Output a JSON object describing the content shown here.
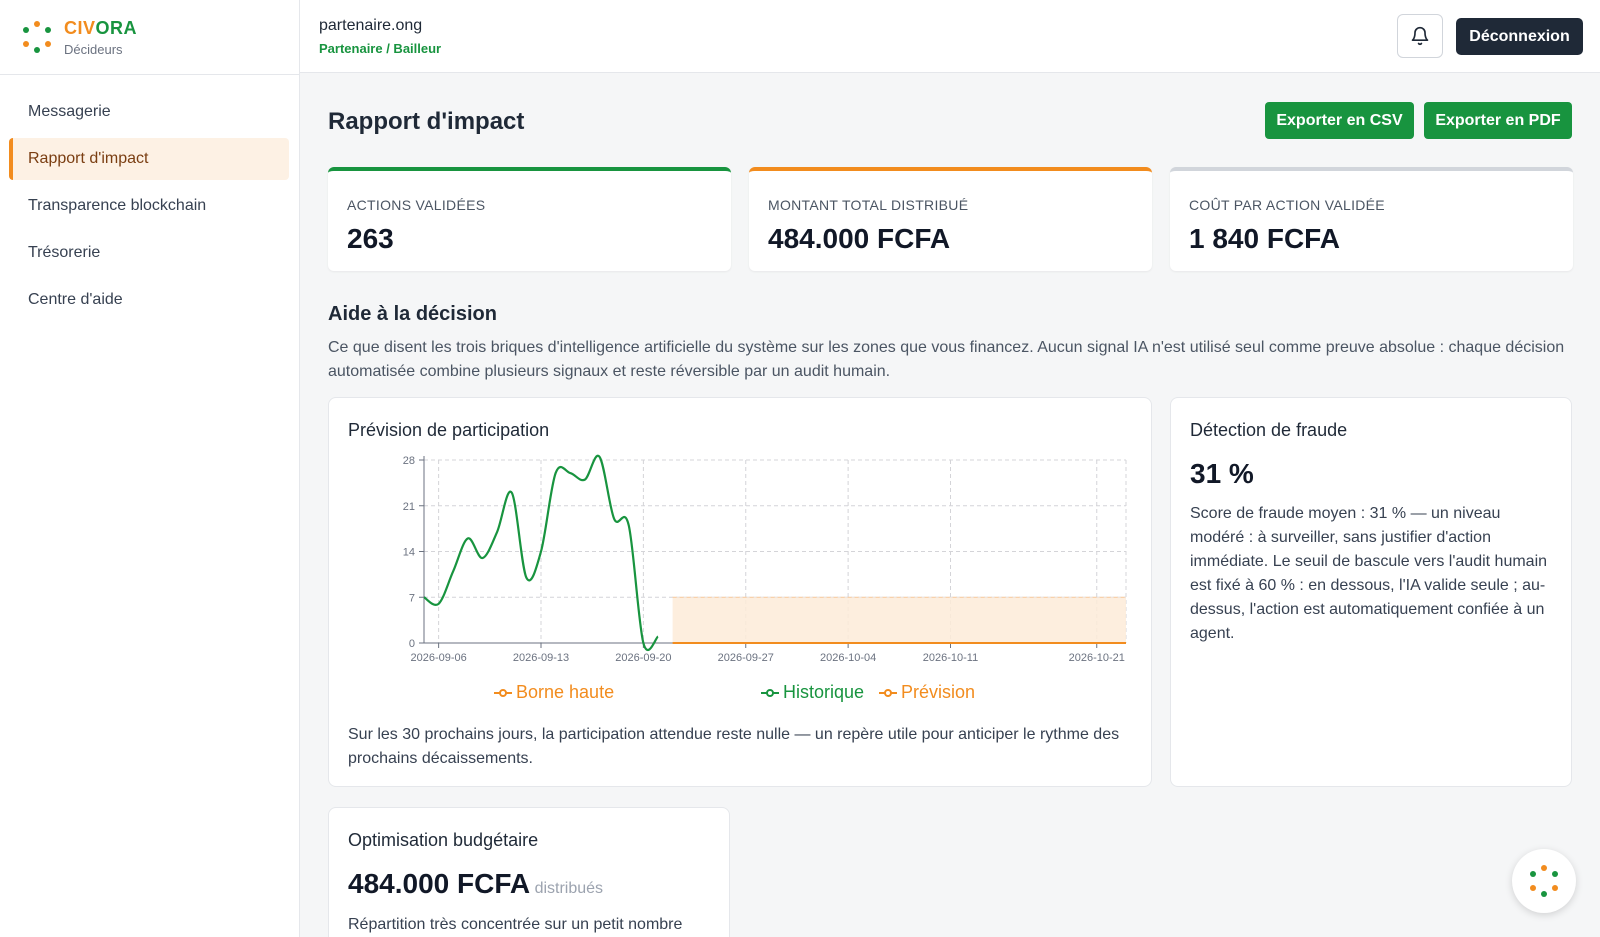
{
  "brand": {
    "name_part1": "CIV",
    "name_part2": "ORA",
    "subtitle": "Décideurs"
  },
  "sidebar": {
    "items": [
      {
        "label": "Messagerie",
        "active": false
      },
      {
        "label": "Rapport d'impact",
        "active": true
      },
      {
        "label": "Transparence blockchain",
        "active": false
      },
      {
        "label": "Trésorerie",
        "active": false
      },
      {
        "label": "Centre d'aide",
        "active": false
      }
    ]
  },
  "topbar": {
    "org": "partenaire.ong",
    "role": "Partenaire / Bailleur",
    "logout_label": "Déconnexion",
    "bell_icon": "bell-icon"
  },
  "page": {
    "title": "Rapport d'impact",
    "export_csv": "Exporter en CSV",
    "export_pdf": "Exporter en PDF"
  },
  "kpis": [
    {
      "label": "ACTIONS VALIDÉES",
      "value": "263",
      "accent": "#18943f"
    },
    {
      "label": "MONTANT TOTAL DISTRIBUÉ",
      "value": "484.000 FCFA",
      "accent": "#f28c1e"
    },
    {
      "label": "COÛT PAR ACTION VALIDÉE",
      "value": "1 840 FCFA",
      "accent": "#d1d5db"
    }
  ],
  "decision": {
    "title": "Aide à la décision",
    "description": "Ce que disent les trois briques d'intelligence artificielle du système sur les zones que vous financez. Aucun signal IA n'est utilisé seul comme preuve absolue : chaque décision automatisée combine plusieurs signaux et reste réversible par un audit humain."
  },
  "forecast": {
    "title": "Prévision de participation",
    "summary": "Sur les 30 prochains jours, la participation attendue reste nulle — un repère utile pour anticiper le rythme des prochains décaissements.",
    "legend": {
      "upper": "Borne haute",
      "history": "Historique",
      "forecast": "Prévision"
    }
  },
  "fraud": {
    "title": "Détection de fraude",
    "value": "31 %",
    "text": "Score de fraude moyen : 31 % — un niveau modéré : à surveiller, sans justifier d'action immédiate. Le seuil de bascule vers l'audit humain est fixé à 60 % : en dessous, l'IA valide seule ; au-dessus, l'action est automatiquement confiée à un agent."
  },
  "budget": {
    "title": "Optimisation budgétaire",
    "value": "484.000 FCFA",
    "unit": "distribués",
    "text": "Répartition très concentrée sur un petit nombre"
  },
  "colors": {
    "green": "#18943f",
    "orange": "#f28c1e",
    "dark": "#1f2937",
    "band": "#fdebd8"
  },
  "chart_data": {
    "type": "line",
    "x_ticks": [
      "2026-09-06",
      "2026-09-13",
      "2026-09-20",
      "2026-09-27",
      "2026-10-04",
      "2026-10-11",
      "2026-10-21"
    ],
    "y_ticks": [
      0,
      7,
      14,
      21,
      28
    ],
    "ylim": [
      0,
      28
    ],
    "xlim": [
      "2026-09-05",
      "2026-10-23"
    ],
    "grid": true,
    "legend_position": "bottom",
    "series": [
      {
        "name": "Historique",
        "color": "#18943f",
        "x": [
          "2026-09-05",
          "2026-09-06",
          "2026-09-07",
          "2026-09-08",
          "2026-09-09",
          "2026-09-10",
          "2026-09-11",
          "2026-09-12",
          "2026-09-13",
          "2026-09-14",
          "2026-09-15",
          "2026-09-16",
          "2026-09-17",
          "2026-09-18",
          "2026-09-19",
          "2026-09-20",
          "2026-09-21"
        ],
        "values": [
          7,
          6,
          11,
          16,
          13,
          17,
          23,
          10,
          14,
          26,
          26,
          25,
          28.5,
          19,
          18,
          0,
          1
        ]
      },
      {
        "name": "Prévision",
        "color": "#f28c1e",
        "x": [
          "2026-09-22",
          "2026-10-23"
        ],
        "values": [
          0,
          0
        ]
      },
      {
        "name": "Borne haute",
        "color": "#f28c1e",
        "x": [
          "2026-09-22",
          "2026-10-23"
        ],
        "values": [
          7,
          7
        ]
      }
    ]
  }
}
